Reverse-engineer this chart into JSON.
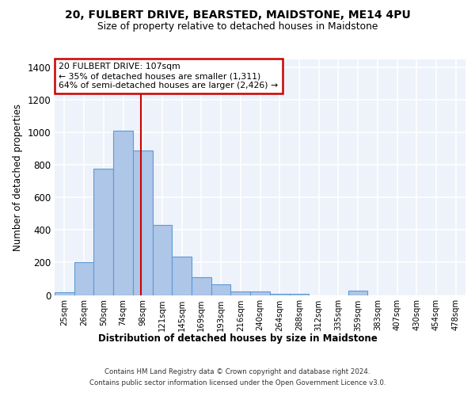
{
  "title": "20, FULBERT DRIVE, BEARSTED, MAIDSTONE, ME14 4PU",
  "subtitle": "Size of property relative to detached houses in Maidstone",
  "xlabel": "Distribution of detached houses by size in Maidstone",
  "ylabel": "Number of detached properties",
  "categories": [
    "25sqm",
    "26sqm",
    "50sqm",
    "74sqm",
    "98sqm",
    "121sqm",
    "145sqm",
    "169sqm",
    "193sqm",
    "216sqm",
    "240sqm",
    "264sqm",
    "288sqm",
    "312sqm",
    "335sqm",
    "359sqm",
    "383sqm",
    "407sqm",
    "430sqm",
    "454sqm",
    "478sqm"
  ],
  "bar_values": [
    15,
    200,
    775,
    1010,
    890,
    430,
    235,
    110,
    65,
    20,
    20,
    5,
    5,
    0,
    0,
    25,
    0,
    0,
    0,
    0,
    0
  ],
  "bar_color": "#aec6e8",
  "bar_edge_color": "#5b9bd5",
  "property_line_label": "20 FULBERT DRIVE: 107sqm",
  "annotation_line1": "← 35% of detached houses are smaller (1,311)",
  "annotation_line2": "64% of semi-detached houses are larger (2,426) →",
  "annotation_box_color": "#ffffff",
  "annotation_box_edge_color": "#cc0000",
  "vline_color": "#cc0000",
  "vline_bin_index": 4,
  "ylim": [
    0,
    1450
  ],
  "yticks": [
    0,
    200,
    400,
    600,
    800,
    1000,
    1200,
    1400
  ],
  "background_color": "#eef2fa",
  "grid_color": "#ffffff",
  "footer_line1": "Contains HM Land Registry data © Crown copyright and database right 2024.",
  "footer_line2": "Contains public sector information licensed under the Open Government Licence v3.0."
}
